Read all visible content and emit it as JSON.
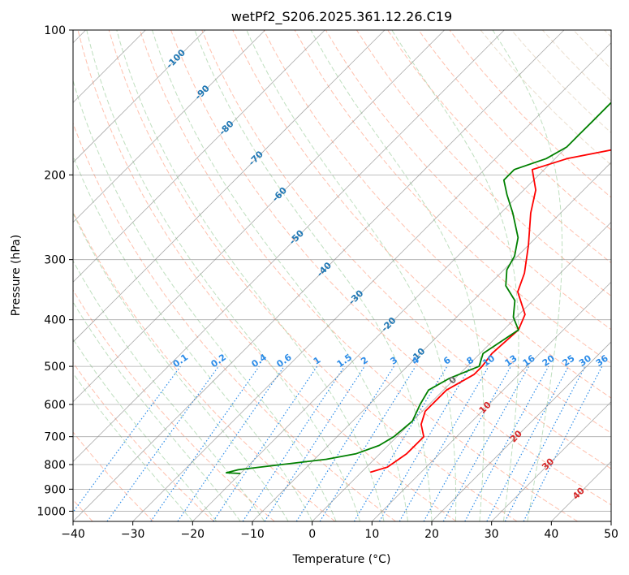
{
  "chart_data": {
    "type": "skew-t",
    "title": "wetPf2_S206.2025.361.12.26.C19",
    "xlabel": "Temperature (°C)",
    "ylabel": "Pressure (hPa)",
    "xlim": [
      -40,
      50
    ],
    "ylim": [
      1050,
      100
    ],
    "x_ticks": [
      -40,
      -30,
      -20,
      -10,
      0,
      10,
      20,
      30,
      40,
      50
    ],
    "y_ticks": [
      1000,
      900,
      800,
      700,
      600,
      500,
      400,
      300,
      200,
      100
    ],
    "x_tick_labels": [
      "−40",
      "−30",
      "−20",
      "−10",
      "0",
      "10",
      "20",
      "30",
      "40",
      "50"
    ],
    "y_tick_labels": [
      "1000",
      "900",
      "800",
      "700",
      "600",
      "500",
      "400",
      "300",
      "200",
      "100"
    ],
    "grid": true,
    "isotherm_labels": [
      {
        "text": "-100",
        "T": -100,
        "p": 115
      },
      {
        "text": "-90",
        "T": -90,
        "p": 135
      },
      {
        "text": "-80",
        "T": -80,
        "p": 160
      },
      {
        "text": "-70",
        "T": -70,
        "p": 185
      },
      {
        "text": "-60",
        "T": -60,
        "p": 220
      },
      {
        "text": "-50",
        "T": -50,
        "p": 270
      },
      {
        "text": "-40",
        "T": -40,
        "p": 315
      },
      {
        "text": "-30",
        "T": -30,
        "p": 360
      },
      {
        "text": "-20",
        "T": -20,
        "p": 410
      },
      {
        "text": "-10",
        "T": -10,
        "p": 475
      },
      {
        "text": "0",
        "T": 0,
        "p": 535
      },
      {
        "text": "10",
        "T": 10,
        "p": 610
      },
      {
        "text": "20",
        "T": 20,
        "p": 700
      },
      {
        "text": "30",
        "T": 30,
        "p": 800
      },
      {
        "text": "40",
        "T": 40,
        "p": 920
      }
    ],
    "mixing_ratio_labels": [
      "0.1",
      "0.2",
      "0.4",
      "0.6",
      "1",
      "1.5",
      "2",
      "3",
      "4",
      "6",
      "8",
      "10",
      "13",
      "16",
      "20",
      "25",
      "30",
      "36"
    ],
    "series": [
      {
        "name": "Temperature",
        "color": "#ff0000",
        "points": [
          {
            "p": 830,
            "T": 1.5
          },
          {
            "p": 810,
            "T": 3.5
          },
          {
            "p": 760,
            "T": 4.5
          },
          {
            "p": 700,
            "T": 4.5
          },
          {
            "p": 660,
            "T": 2.0
          },
          {
            "p": 620,
            "T": 0.5
          },
          {
            "p": 560,
            "T": 0.5
          },
          {
            "p": 520,
            "T": 2.5
          },
          {
            "p": 500,
            "T": 2.5
          },
          {
            "p": 470,
            "T": 2.0
          },
          {
            "p": 420,
            "T": 2.5
          },
          {
            "p": 390,
            "T": 1.0
          },
          {
            "p": 350,
            "T": -4.0
          },
          {
            "p": 320,
            "T": -6.0
          },
          {
            "p": 280,
            "T": -10.0
          },
          {
            "p": 240,
            "T": -15.0
          },
          {
            "p": 215,
            "T": -18.0
          },
          {
            "p": 195,
            "T": -22.0
          },
          {
            "p": 185,
            "T": -18.0
          },
          {
            "p": 175,
            "T": -10.0
          },
          {
            "p": 165,
            "T": -4.0
          },
          {
            "p": 158,
            "T": -2.0
          },
          {
            "p": 148,
            "T": 3.0
          },
          {
            "p": 135,
            "T": 12.0
          },
          {
            "p": 128,
            "T": 17.0
          },
          {
            "p": 115,
            "T": 19.0
          },
          {
            "p": 105,
            "T": 19.0
          },
          {
            "p": 100,
            "T": 20.0
          }
        ]
      },
      {
        "name": "Dewpoint",
        "color": "#008000",
        "points": [
          {
            "p": 835,
            "T": -20.0
          },
          {
            "p": 832,
            "T": -22.5
          },
          {
            "p": 820,
            "T": -21.0
          },
          {
            "p": 780,
            "T": -8.0
          },
          {
            "p": 760,
            "T": -4.0
          },
          {
            "p": 730,
            "T": -1.5
          },
          {
            "p": 700,
            "T": -0.5
          },
          {
            "p": 650,
            "T": 0.0
          },
          {
            "p": 600,
            "T": -1.5
          },
          {
            "p": 560,
            "T": -2.5
          },
          {
            "p": 530,
            "T": -1.0
          },
          {
            "p": 500,
            "T": 2.0
          },
          {
            "p": 470,
            "T": 0.5
          },
          {
            "p": 420,
            "T": 2.5
          },
          {
            "p": 395,
            "T": -0.5
          },
          {
            "p": 365,
            "T": -3.0
          },
          {
            "p": 340,
            "T": -7.0
          },
          {
            "p": 315,
            "T": -9.5
          },
          {
            "p": 295,
            "T": -10.5
          },
          {
            "p": 270,
            "T": -13.0
          },
          {
            "p": 240,
            "T": -18.0
          },
          {
            "p": 220,
            "T": -22.0
          },
          {
            "p": 205,
            "T": -25.0
          },
          {
            "p": 195,
            "T": -25.0
          },
          {
            "p": 185,
            "T": -21.5
          },
          {
            "p": 175,
            "T": -20.0
          },
          {
            "p": 165,
            "T": -20.0
          },
          {
            "p": 155,
            "T": -20.0
          },
          {
            "p": 142,
            "T": -20.0
          },
          {
            "p": 130,
            "T": -19.0
          },
          {
            "p": 120,
            "T": -16.0
          },
          {
            "p": 110,
            "T": -12.0
          },
          {
            "p": 100,
            "T": -8.0
          }
        ]
      }
    ]
  }
}
